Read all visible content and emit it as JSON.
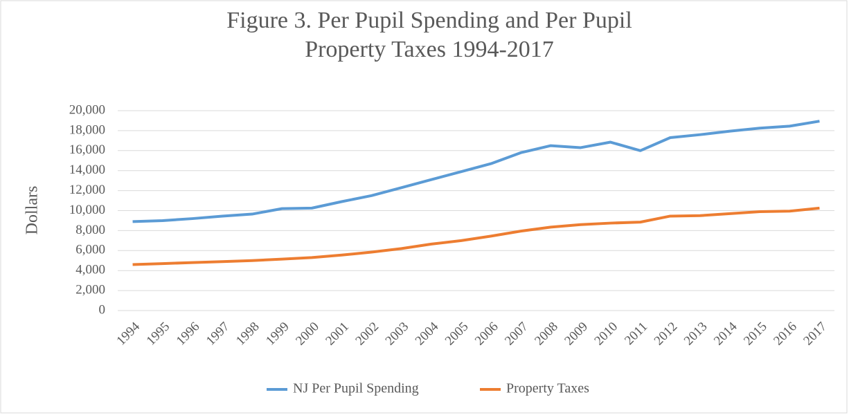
{
  "chart_data": {
    "type": "line",
    "title": [
      "Figure 3. Per Pupil Spending and Per Pupil",
      "Property Taxes 1994-2017"
    ],
    "y_label": "Dollars",
    "categories": [
      "1994",
      "1995",
      "1996",
      "1997",
      "1998",
      "1999",
      "2000",
      "2001",
      "2002",
      "2003",
      "2004",
      "2005",
      "2006",
      "2007",
      "2008",
      "2009",
      "2010",
      "2011",
      "2012",
      "2013",
      "2014",
      "2015",
      "2016",
      "2017"
    ],
    "series": [
      {
        "name": "NJ Per Pupil Spending",
        "color": "#5b9bd5",
        "values": [
          8900,
          9000,
          9200,
          9450,
          9650,
          10200,
          10250,
          10900,
          11500,
          12300,
          13100,
          13900,
          14700,
          15800,
          16500,
          16300,
          16850,
          16000,
          17300,
          17600,
          17950,
          18250,
          18450,
          18950
        ]
      },
      {
        "name": "Property Taxes",
        "color": "#ed7d31",
        "values": [
          4600,
          4700,
          4800,
          4900,
          5000,
          5150,
          5300,
          5550,
          5850,
          6200,
          6650,
          7000,
          7450,
          7950,
          8350,
          8600,
          8750,
          8850,
          9450,
          9500,
          9700,
          9900,
          9950,
          10250
        ]
      }
    ],
    "ylim": [
      0,
      20000
    ],
    "yticks": [
      0,
      {
        "value": 2000,
        "label": "2,000"
      },
      {
        "value": 4000,
        "label": "4,000"
      },
      {
        "value": 6000,
        "label": "6,000"
      },
      {
        "value": 8000,
        "label": "8,000"
      },
      {
        "value": 10000,
        "label": "10,000"
      },
      {
        "value": 12000,
        "label": "12,000"
      },
      {
        "value": 14000,
        "label": "14,000"
      },
      {
        "value": 16000,
        "label": "16,000"
      },
      {
        "value": 18000,
        "label": "18,000"
      },
      {
        "value": 20000,
        "label": "20,000"
      }
    ],
    "grid": true,
    "legend": "bottom"
  }
}
